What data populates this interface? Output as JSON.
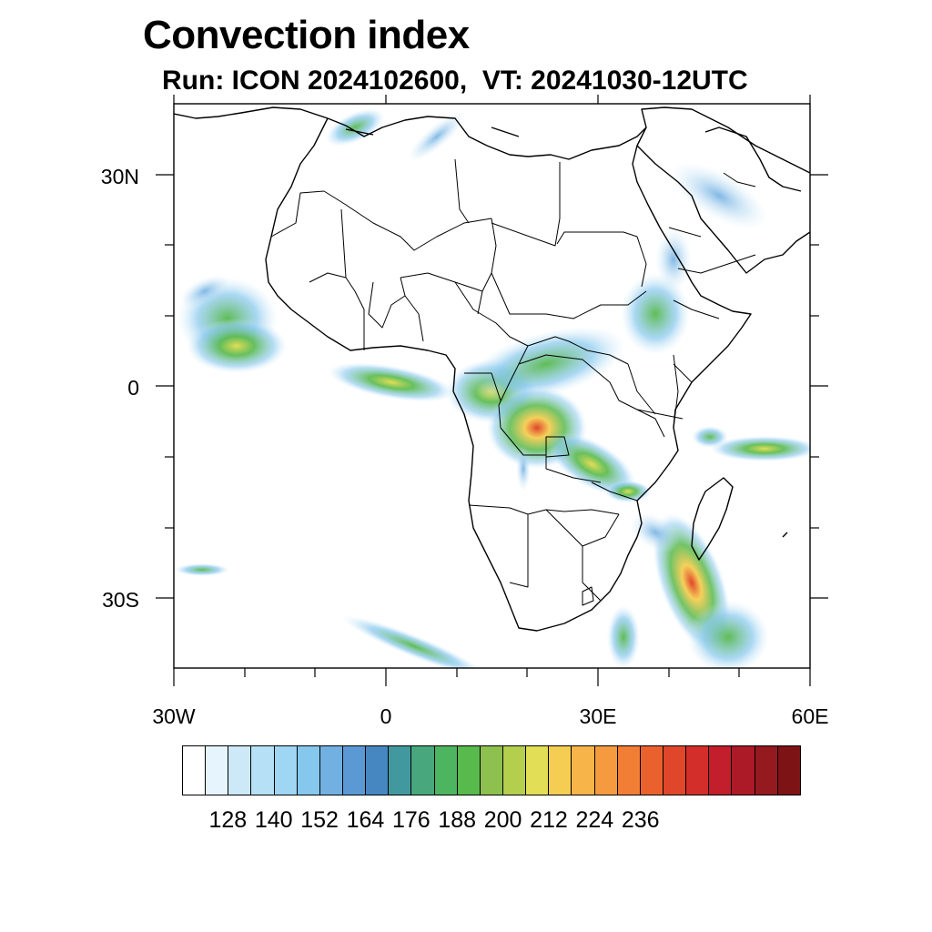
{
  "title": "Convection index",
  "subtitle": "Run: ICON 2024102600,  VT: 20241030-12UTC",
  "map": {
    "lon_range": [
      -30,
      60
    ],
    "lat_range": [
      -40,
      40
    ],
    "lat_labels": [
      "30N",
      "0",
      "30S"
    ],
    "lon_labels": [
      "30W",
      "0",
      "30E",
      "60E"
    ]
  },
  "colorbar": {
    "colors": [
      "#ffffff",
      "#e6f4fd",
      "#cde9f8",
      "#b6e0f6",
      "#9ed6f4",
      "#86c7ee",
      "#72b0e2",
      "#5b99d4",
      "#4687c2",
      "#42989f",
      "#48a77d",
      "#4db45f",
      "#58b94c",
      "#8dc04f",
      "#b4ce4e",
      "#e2de55",
      "#f5cd52",
      "#f7b449",
      "#f59a3f",
      "#f27d34",
      "#ea612e",
      "#e0462a",
      "#d42e2a",
      "#c21e2b",
      "#ad1a27",
      "#951a20",
      "#7e1316"
    ],
    "labels": [
      "128",
      "140",
      "152",
      "164",
      "176",
      "188",
      "200",
      "212",
      "224",
      "236"
    ]
  }
}
